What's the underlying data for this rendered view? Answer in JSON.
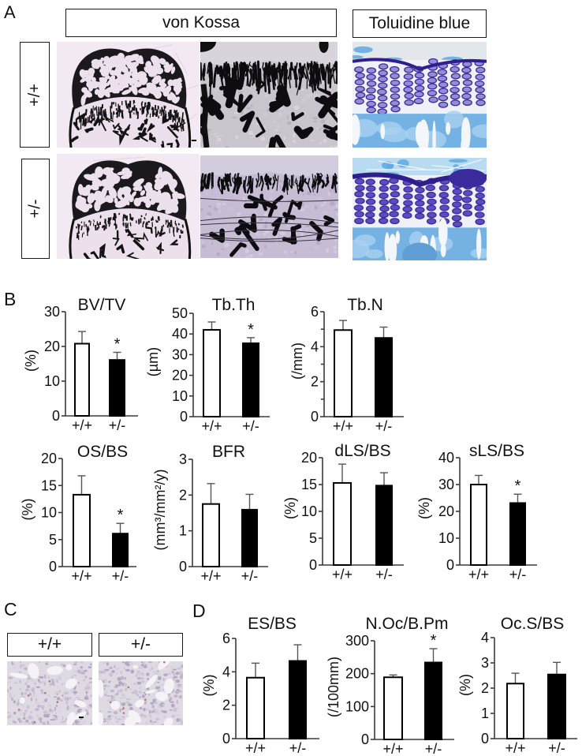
{
  "panel_labels": {
    "a": "A",
    "b": "B",
    "c": "C",
    "d": "D"
  },
  "panel_a": {
    "headers": {
      "von_kossa": "von Kossa",
      "toluidine_blue": "Toluidine blue"
    },
    "row_labels": [
      "+/+",
      "+/-"
    ],
    "images": [
      "von-kossa-low-magnification-wildtype",
      "von-kossa-high-magnification-wildtype",
      "toluidine-blue-wildtype",
      "von-kossa-low-magnification-heterozygous",
      "von-kossa-high-magnification-heterozygous",
      "toluidine-blue-heterozygous"
    ]
  },
  "panel_c": {
    "labels": [
      "+/+",
      "+/-"
    ],
    "images": [
      "trap-stain-wildtype",
      "trap-stain-heterozygous"
    ]
  },
  "chart_data": [
    {
      "type": "bar",
      "panel": "B",
      "title": "BV/TV",
      "xlabel": "",
      "ylabel": "(%)",
      "categories": [
        "+/+",
        "+/-"
      ],
      "values": [
        20.8,
        16.1
      ],
      "errors": [
        3.5,
        2.2
      ],
      "significance": [
        "",
        "*"
      ],
      "ylim": [
        0,
        30
      ],
      "yticks": [
        0,
        10,
        20,
        30
      ],
      "minor_yticks": [],
      "bar_colors": [
        "#ffffff",
        "#000000"
      ],
      "grid": false,
      "legend": null
    },
    {
      "type": "bar",
      "panel": "B",
      "title": "Tb.Th",
      "xlabel": "",
      "ylabel": "(µm)",
      "categories": [
        "+/+",
        "+/-"
      ],
      "values": [
        42.0,
        35.5
      ],
      "errors": [
        3.8,
        2.7
      ],
      "significance": [
        "",
        "*"
      ],
      "ylim": [
        0,
        50
      ],
      "yticks": [
        0,
        10,
        20,
        30,
        40,
        50
      ],
      "minor_yticks": [],
      "bar_colors": [
        "#ffffff",
        "#000000"
      ],
      "grid": false,
      "legend": null
    },
    {
      "type": "bar",
      "panel": "B",
      "title": "Tb.N",
      "xlabel": "",
      "ylabel": "(/mm)",
      "categories": [
        "+/+",
        "+/-"
      ],
      "values": [
        4.95,
        4.5
      ],
      "errors": [
        0.55,
        0.62
      ],
      "significance": [
        "",
        ""
      ],
      "ylim": [
        0,
        6
      ],
      "yticks": [
        0,
        2,
        4,
        6
      ],
      "minor_yticks": [
        1,
        3,
        5
      ],
      "bar_colors": [
        "#ffffff",
        "#000000"
      ],
      "grid": false,
      "legend": null
    },
    {
      "type": "bar",
      "panel": "B",
      "title": "OS/BS",
      "xlabel": "",
      "ylabel": "(%)",
      "categories": [
        "+/+",
        "+/-"
      ],
      "values": [
        13.3,
        6.1
      ],
      "errors": [
        3.5,
        1.9
      ],
      "significance": [
        "",
        "*"
      ],
      "ylim": [
        0,
        20
      ],
      "yticks": [
        0,
        5,
        10,
        15,
        20
      ],
      "minor_yticks": [],
      "bar_colors": [
        "#ffffff",
        "#000000"
      ],
      "grid": false,
      "legend": null
    },
    {
      "type": "bar",
      "panel": "B",
      "title": "BFR",
      "xlabel": "",
      "ylabel": "(mm³/mm²/y)",
      "categories": [
        "+/+",
        "+/-"
      ],
      "values": [
        1.75,
        1.59
      ],
      "errors": [
        0.57,
        0.43
      ],
      "significance": [
        "",
        ""
      ],
      "ylim": [
        0,
        3
      ],
      "yticks": [
        0,
        1,
        2,
        3
      ],
      "minor_yticks": [],
      "bar_colors": [
        "#ffffff",
        "#000000"
      ],
      "grid": false,
      "legend": null
    },
    {
      "type": "bar",
      "panel": "B",
      "title": "dLS/BS",
      "xlabel": "",
      "ylabel": "(%)",
      "categories": [
        "+/+",
        "+/-"
      ],
      "values": [
        15.3,
        14.8
      ],
      "errors": [
        3.5,
        2.4
      ],
      "significance": [
        "",
        ""
      ],
      "ylim": [
        0,
        20
      ],
      "yticks": [
        0,
        5,
        10,
        15,
        20
      ],
      "minor_yticks": [],
      "bar_colors": [
        "#ffffff",
        "#000000"
      ],
      "grid": false,
      "legend": null
    },
    {
      "type": "bar",
      "panel": "B",
      "title": "sLS/BS",
      "xlabel": "",
      "ylabel": "(%)",
      "categories": [
        "+/+",
        "+/-"
      ],
      "values": [
        30.0,
        23.1
      ],
      "errors": [
        3.4,
        3.3
      ],
      "significance": [
        "",
        "*"
      ],
      "ylim": [
        0,
        40
      ],
      "yticks": [
        0,
        10,
        20,
        30,
        40
      ],
      "minor_yticks": [],
      "bar_colors": [
        "#ffffff",
        "#000000"
      ],
      "grid": false,
      "legend": null
    },
    {
      "type": "bar",
      "panel": "D",
      "title": "ES/BS",
      "xlabel": "",
      "ylabel": "(%)",
      "categories": [
        "+/+",
        "+/-"
      ],
      "values": [
        3.65,
        4.65
      ],
      "errors": [
        0.87,
        0.97
      ],
      "significance": [
        "",
        ""
      ],
      "ylim": [
        0,
        6
      ],
      "yticks": [
        0,
        2,
        4,
        6
      ],
      "minor_yticks": [],
      "bar_colors": [
        "#ffffff",
        "#000000"
      ],
      "grid": false,
      "legend": null
    },
    {
      "type": "bar",
      "panel": "D",
      "title": "N.Oc/B.Pm",
      "xlabel": "",
      "ylabel": "(/100mm)",
      "categories": [
        "+/+",
        "+/-"
      ],
      "values": [
        189,
        234
      ],
      "errors": [
        7,
        42
      ],
      "significance": [
        "",
        "*"
      ],
      "ylim": [
        0,
        300
      ],
      "yticks": [
        0,
        100,
        200,
        300
      ],
      "minor_yticks": [],
      "bar_colors": [
        "#ffffff",
        "#000000"
      ],
      "grid": false,
      "legend": null
    },
    {
      "type": "bar",
      "panel": "D",
      "title": "Oc.S/BS",
      "xlabel": "",
      "ylabel": "(%)",
      "categories": [
        "+/+",
        "+/-"
      ],
      "values": [
        2.18,
        2.54
      ],
      "errors": [
        0.41,
        0.48
      ],
      "significance": [
        "",
        ""
      ],
      "ylim": [
        0,
        4
      ],
      "yticks": [
        0,
        1,
        2,
        3,
        4
      ],
      "minor_yticks": [],
      "bar_colors": [
        "#ffffff",
        "#000000"
      ],
      "grid": false,
      "legend": null
    }
  ]
}
